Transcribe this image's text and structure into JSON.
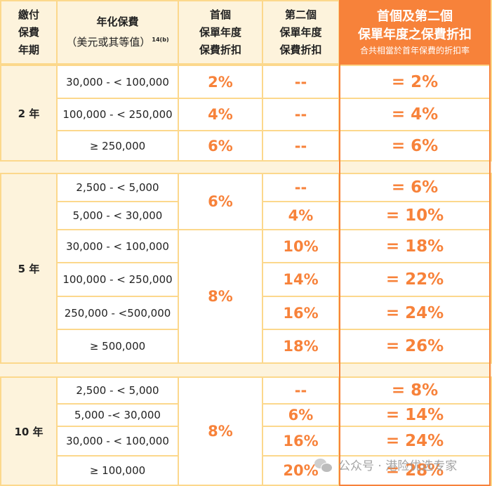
{
  "headers": {
    "term": [
      "繳付",
      "保費",
      "年期"
    ],
    "premium": [
      "年化保費",
      "（美元或其等值）"
    ],
    "premium_note": "14(b)",
    "first": [
      "首個",
      "保單年度",
      "保費折扣"
    ],
    "second": [
      "第二個",
      "保單年度",
      "保費折扣"
    ],
    "combined": [
      "首個及第二個",
      "保單年度之保費折扣"
    ],
    "combined_sub": "合共相當於首年保費的折扣率"
  },
  "groups": [
    {
      "term": "2 年",
      "rows": [
        {
          "amount": "30,000 - < 100,000",
          "first": "2%",
          "second": "--",
          "total": "= 2%"
        },
        {
          "amount": "100,000 - < 250,000",
          "first": "4%",
          "second": "--",
          "total": "= 4%"
        },
        {
          "amount": "≥ 250,000",
          "first": "6%",
          "second": "--",
          "total": "= 6%"
        }
      ]
    },
    {
      "term": "5 年",
      "first_blocks": [
        "6%",
        "8%"
      ],
      "rows": [
        {
          "amount": "2,500 - < 5,000",
          "second": "--",
          "total": "= 6%"
        },
        {
          "amount": "5,000 - < 30,000",
          "second": "4%",
          "total": "= 10%"
        },
        {
          "amount": "30,000 - < 100,000",
          "second": "10%",
          "total": "= 18%"
        },
        {
          "amount": "100,000 - < 250,000",
          "second": "14%",
          "total": "= 22%"
        },
        {
          "amount": "250,000 - <500,000",
          "second": "16%",
          "total": "= 24%"
        },
        {
          "amount": "≥ 500,000",
          "second": "18%",
          "total": "= 26%"
        }
      ]
    },
    {
      "term": "10 年",
      "first_block": "8%",
      "rows": [
        {
          "amount": "2,500 - < 5,000",
          "second": "--",
          "total": "= 8%"
        },
        {
          "amount": "5,000 -< 30,000",
          "second": "6%",
          "total": "= 14%"
        },
        {
          "amount": "30,000 - < 100,000",
          "second": "16%",
          "total": "= 24%"
        },
        {
          "amount": "≥ 100,000",
          "second": "20%",
          "total": "= 28%"
        }
      ]
    }
  ],
  "watermark": "公众号 · 港险优选专家",
  "colors": {
    "accent": "#f7823a",
    "header_bg": "#fdf3dc",
    "grid": "#fcd88c"
  }
}
